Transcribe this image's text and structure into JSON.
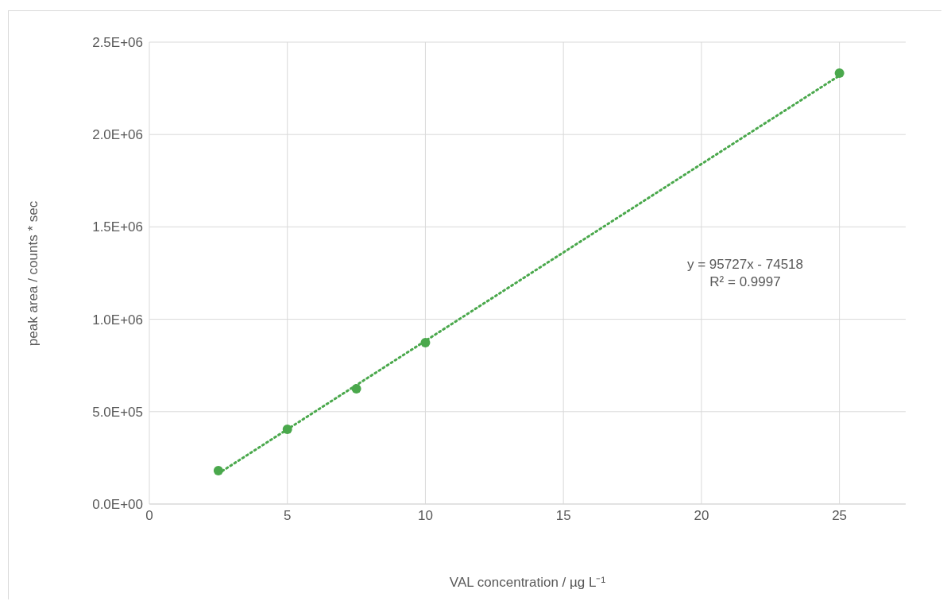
{
  "chart_data": {
    "type": "scatter",
    "xlabel": "VAL concentration / µg L⁻¹",
    "ylabel": "peak area / counts * sec",
    "annotations": [
      "y = 95727x - 74518",
      "R² = 0.9997"
    ],
    "x": [
      2.5,
      5,
      7.5,
      10,
      25
    ],
    "series": [
      {
        "type": "scatter",
        "color": "#4aa84c",
        "marker": "circle",
        "values": [
          181000,
          404000,
          624000,
          873000,
          2332000
        ]
      },
      {
        "type": "line",
        "color": "#4aa84c",
        "line_style": "dotted",
        "marker": "none",
        "x": [
          2.5,
          25
        ],
        "values": [
          165000,
          2319000
        ]
      }
    ],
    "xlim": [
      0,
      27.4
    ],
    "xticks": [
      0,
      5,
      10,
      15,
      20,
      25
    ],
    "ylim": [
      0,
      2500000
    ],
    "yticks": [
      {
        "value": 0,
        "label": "0.0E+00"
      },
      {
        "value": 500000,
        "label": "5.0E+05"
      },
      {
        "value": 1000000,
        "label": "1.0E+06"
      },
      {
        "value": 1500000,
        "label": "1.5E+06"
      },
      {
        "value": 2000000,
        "label": "2.0E+06"
      },
      {
        "value": 2500000,
        "label": "2.5E+06"
      }
    ],
    "grid": true
  }
}
